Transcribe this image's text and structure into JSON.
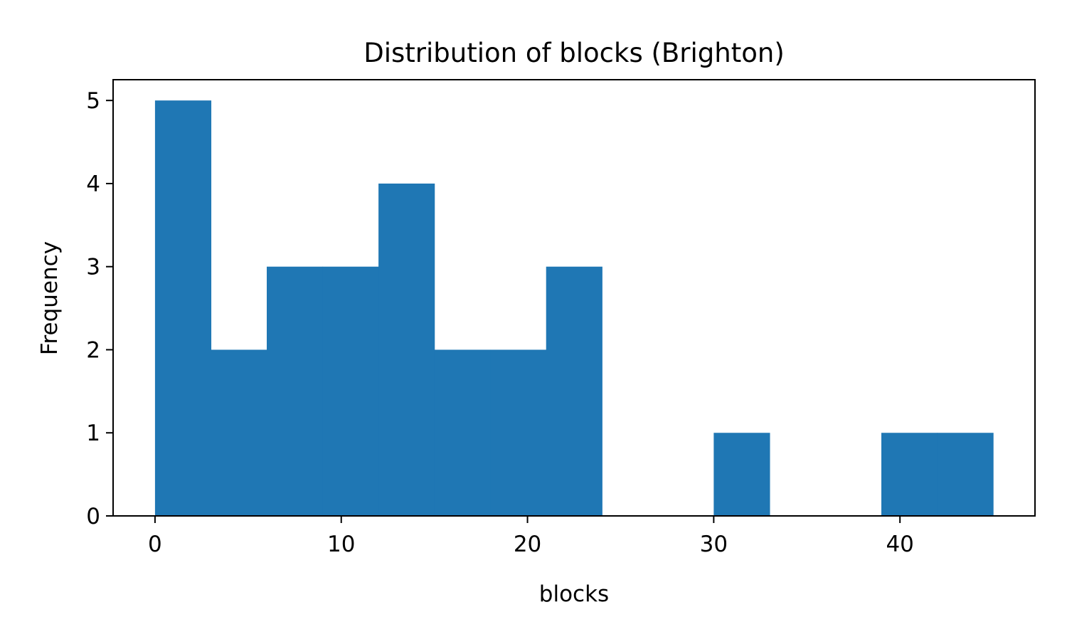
{
  "chart_data": {
    "type": "bar",
    "subtype": "histogram",
    "title": "Distribution of blocks (Brighton)",
    "xlabel": "blocks",
    "ylabel": "Frequency",
    "bin_edges": [
      0,
      3,
      6,
      9,
      12,
      15,
      18,
      21,
      24,
      27,
      30,
      33,
      36,
      39,
      42,
      45
    ],
    "values": [
      5,
      2,
      3,
      3,
      4,
      2,
      2,
      3,
      0,
      0,
      1,
      0,
      0,
      1,
      1
    ],
    "xlim": [
      -2.25,
      47.25
    ],
    "ylim": [
      0,
      5.25
    ],
    "xticks": [
      0,
      10,
      20,
      30,
      40
    ],
    "yticks": [
      0,
      1,
      2,
      3,
      4,
      5
    ],
    "bar_color": "#1f77b4",
    "grid": false
  }
}
